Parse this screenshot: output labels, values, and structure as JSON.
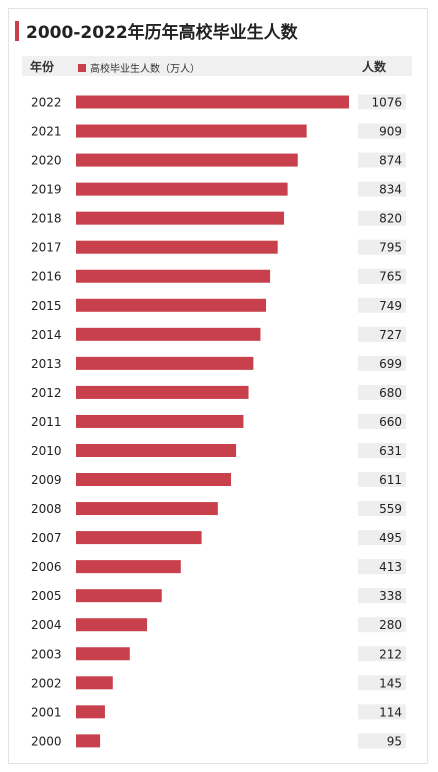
{
  "title": "2000-2022年历年高校毕业生人数",
  "header": {
    "year_label": "年份",
    "legend_label": "高校毕业生人数（万人）",
    "value_label": "人数"
  },
  "colors": {
    "bar": "#c8404b",
    "value_cell": "#eeeeee",
    "header_band": "#f0f0f0"
  },
  "chart_data": {
    "type": "bar",
    "orientation": "horizontal",
    "title": "2000-2022年历年高校毕业生人数",
    "unit": "万人",
    "categories": [
      "2022",
      "2021",
      "2020",
      "2019",
      "2018",
      "2017",
      "2016",
      "2015",
      "2014",
      "2013",
      "2012",
      "2011",
      "2010",
      "2009",
      "2008",
      "2007",
      "2006",
      "2005",
      "2004",
      "2003",
      "2002",
      "2001",
      "2000"
    ],
    "series": [
      {
        "name": "高校毕业生人数（万人）",
        "values": [
          1076,
          909,
          874,
          834,
          820,
          795,
          765,
          749,
          727,
          699,
          680,
          660,
          631,
          611,
          559,
          495,
          413,
          338,
          280,
          212,
          145,
          114,
          95
        ]
      }
    ],
    "grid": false,
    "legend": "top-left"
  }
}
